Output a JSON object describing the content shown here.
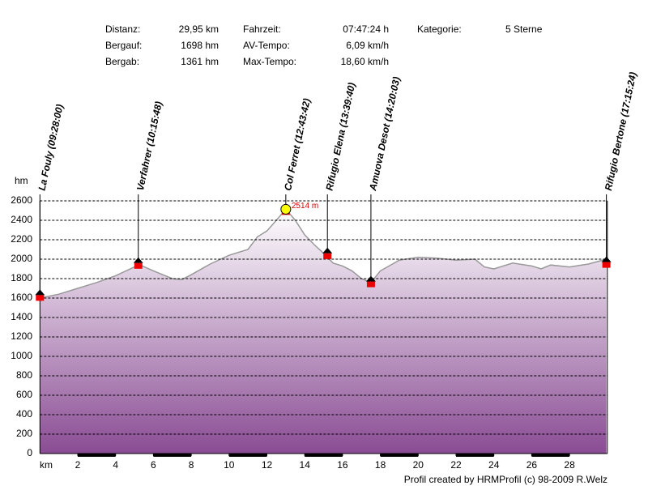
{
  "chart_data": {
    "type": "area",
    "stats": [
      [
        [
          "Distanz:",
          "29,95 km"
        ],
        [
          "Bergauf:",
          "1698 hm"
        ],
        [
          "Bergab:",
          "1361 hm"
        ]
      ],
      [
        [
          "Fahrzeit:",
          "07:47:24 h"
        ],
        [
          "AV-Tempo:",
          "6,09 km/h"
        ],
        [
          "Max-Tempo:",
          "18,60 km/h"
        ]
      ],
      [
        [
          "Kategorie:",
          "5 Sterne"
        ]
      ]
    ],
    "y_label": "hm",
    "x_label": "km",
    "x": [
      0,
      1,
      2,
      3,
      4,
      5,
      5.3,
      6,
      7,
      7.5,
      8,
      9,
      10,
      11,
      11.5,
      12,
      12.5,
      13,
      13.5,
      14,
      14.5,
      15,
      15.5,
      16,
      16.5,
      17,
      17.5,
      18,
      19,
      20,
      21,
      22,
      23,
      23.5,
      24,
      25,
      26,
      26.5,
      27,
      28,
      29,
      29.95
    ],
    "values": [
      1600,
      1640,
      1700,
      1760,
      1830,
      1920,
      1940,
      1880,
      1800,
      1790,
      1840,
      1950,
      2040,
      2100,
      2230,
      2290,
      2400,
      2514,
      2400,
      2250,
      2150,
      2060,
      1960,
      1930,
      1880,
      1800,
      1760,
      1880,
      1990,
      2020,
      2010,
      1990,
      2000,
      1920,
      1900,
      1960,
      1930,
      1900,
      1940,
      1920,
      1950,
      2000
    ],
    "xlim": [
      0,
      30
    ],
    "ylim": [
      0,
      2600
    ],
    "xticks": [
      2,
      4,
      6,
      8,
      10,
      12,
      14,
      16,
      18,
      20,
      22,
      24,
      26,
      28
    ],
    "yticks": [
      0,
      200,
      400,
      600,
      800,
      1000,
      1200,
      1400,
      1600,
      1800,
      2000,
      2200,
      2400,
      2600
    ],
    "grid": true,
    "color": "#8a4c94",
    "waypoints": [
      {
        "label": "La Fouly (09:28:00)",
        "x": 0,
        "value": 1630
      },
      {
        "label": "Verfahrer (10:15:48)",
        "x": 5.2,
        "value": 1960
      },
      {
        "label": "Col Ferret (12:43:42)",
        "x": 13,
        "value": 2514
      },
      {
        "label": "Rifugio Elena (13:39:40)",
        "x": 15.2,
        "value": 2060
      },
      {
        "label": "Amuova Desot (14:20:03)",
        "x": 17.5,
        "value": 1770
      },
      {
        "label": "Rifugio Bertone (17:15:24)",
        "x": 29.95,
        "value": 1970
      }
    ],
    "peak": {
      "x": 13,
      "value": 2514,
      "label": "2514 m"
    },
    "credit": "Profil created by HRMProfil (c) 98-2009 R.Welz"
  }
}
